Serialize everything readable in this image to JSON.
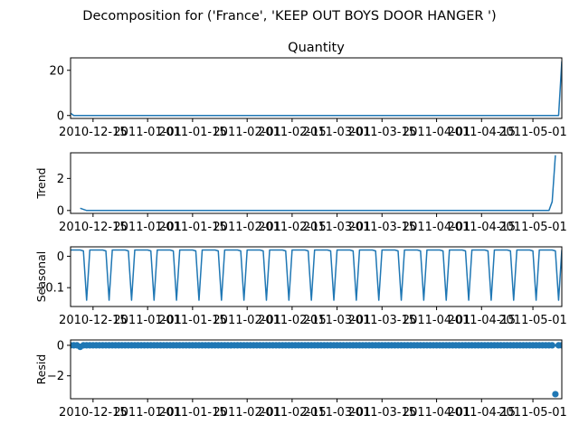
{
  "figure": {
    "suptitle": "Decomposition for ('France', 'KEEP OUT BOYS DOOR HANGER ')"
  },
  "chart_data": [
    {
      "type": "line",
      "panel": "observed",
      "title": "Quantity",
      "ylabel": "",
      "color": "#1f77b4",
      "x_start": "2010-12-08",
      "x_end": "2011-05-10",
      "xlim": [
        "2010-12-08",
        "2011-05-10"
      ],
      "ylim": [
        -1.3,
        25.5
      ],
      "yticks": [
        0,
        20
      ],
      "xticks": [
        "2010-12-15",
        "2011-01-01",
        "2011-01-15",
        "2011-02-01",
        "2011-02-15",
        "2011-03-01",
        "2011-03-15",
        "2011-04-01",
        "2011-04-15",
        "2011-05-01"
      ],
      "points": [
        [
          "2010-12-08",
          1
        ],
        [
          "2010-12-09",
          0
        ],
        [
          "2011-05-09",
          0
        ],
        [
          "2011-05-10",
          24
        ]
      ]
    },
    {
      "type": "line",
      "panel": "trend",
      "title": "",
      "ylabel": "Trend",
      "color": "#1f77b4",
      "xlim": [
        "2010-12-08",
        "2011-05-10"
      ],
      "ylim": [
        -0.18,
        3.6
      ],
      "yticks": [
        0,
        2
      ],
      "xticks": [
        "2010-12-15",
        "2011-01-01",
        "2011-01-15",
        "2011-02-01",
        "2011-02-15",
        "2011-03-01",
        "2011-03-15",
        "2011-04-01",
        "2011-04-15",
        "2011-05-01"
      ],
      "points": [
        [
          "2010-12-11",
          0.14
        ],
        [
          "2010-12-13",
          0
        ],
        [
          "2011-05-06",
          0
        ],
        [
          "2011-05-07",
          0.55
        ],
        [
          "2011-05-08",
          3.45
        ]
      ]
    },
    {
      "type": "line",
      "panel": "seasonal",
      "title": "",
      "ylabel": "Seasonal",
      "color": "#1f77b4",
      "xlim": [
        "2010-12-08",
        "2011-05-10"
      ],
      "ylim": [
        -0.16,
        0.03
      ],
      "yticks": [
        0.0,
        -0.1
      ],
      "xticks": [
        "2010-12-15",
        "2011-01-01",
        "2011-01-15",
        "2011-02-01",
        "2011-02-15",
        "2011-03-01",
        "2011-03-15",
        "2011-04-01",
        "2011-04-15",
        "2011-05-01"
      ],
      "period_days": 7,
      "pattern": [
        0.02,
        0.02,
        0.02,
        0.02,
        0.017,
        -0.14,
        0.02
      ]
    },
    {
      "type": "scatter",
      "panel": "resid",
      "title": "",
      "ylabel": "Resid",
      "color": "#1f77b4",
      "xlim": [
        "2010-12-08",
        "2011-05-10"
      ],
      "ylim": [
        -3.5,
        0.35
      ],
      "yticks": [
        0,
        -2
      ],
      "zero_line": true,
      "xticks": [
        "2010-12-15",
        "2011-01-01",
        "2011-01-15",
        "2011-02-01",
        "2011-02-15",
        "2011-03-01",
        "2011-03-15",
        "2011-04-01",
        "2011-04-15",
        "2011-05-01"
      ],
      "base_value": 0,
      "outliers": [
        [
          "2010-12-11",
          -0.1
        ],
        [
          "2011-05-08",
          -3.2
        ]
      ]
    }
  ]
}
